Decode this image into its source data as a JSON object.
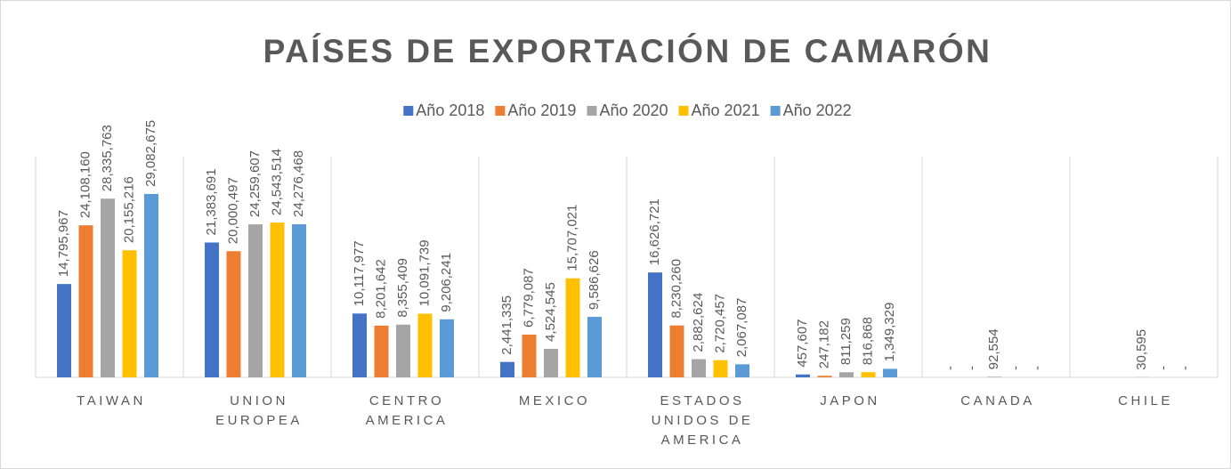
{
  "chart_data": {
    "type": "bar",
    "title": "PAÍSES DE EXPORTACIÓN DE CAMARÓN",
    "categories": [
      "TAIWAN",
      "UNION EUROPEA",
      "CENTRO AMERICA",
      "MEXICO",
      "ESTADOS UNIDOS DE AMERICA",
      "JAPON",
      "CANADA",
      "CHILE"
    ],
    "series": [
      {
        "name": "Año 2018",
        "color": "#4472c4",
        "values": [
          14795967,
          21383691,
          10117977,
          2441335,
          16626721,
          457607,
          0,
          null
        ],
        "value_labels": [
          "14,795,967",
          "21,383,691",
          "10,117,977",
          "2,441,335",
          "16,626,721",
          "457,607",
          "-",
          null
        ]
      },
      {
        "name": "Año 2019",
        "color": "#ed7d31",
        "values": [
          24108160,
          20000497,
          8201642,
          6779087,
          8230260,
          247182,
          0,
          null
        ],
        "value_labels": [
          "24,108,160",
          "20,000,497",
          "8,201,642",
          "6,779,087",
          "8,230,260",
          "247,182",
          "-",
          null
        ]
      },
      {
        "name": "Año 2020",
        "color": "#a5a5a5",
        "values": [
          28335763,
          24259607,
          8355409,
          4524545,
          2882624,
          811259,
          92554,
          30595
        ],
        "value_labels": [
          "28,335,763",
          "24,259,607",
          "8,355,409",
          "4,524,545",
          "2,882,624",
          "811,259",
          "92,554",
          "30,595"
        ]
      },
      {
        "name": "Año 2021",
        "color": "#ffc000",
        "values": [
          20155216,
          24543514,
          10091739,
          15707021,
          2720457,
          816868,
          0,
          0
        ],
        "value_labels": [
          "20,155,216",
          "24,543,514",
          "10,091,739",
          "15,707,021",
          "2,720,457",
          "816,868",
          "-",
          "-"
        ]
      },
      {
        "name": "Año 2022",
        "color": "#5b9bd5",
        "values": [
          29082675,
          24276468,
          9206241,
          9586626,
          2067087,
          1349329,
          0,
          0
        ],
        "value_labels": [
          "29,082,675",
          "24,276,468",
          "9,206,241",
          "9,586,626",
          "2,067,087",
          "1,349,329",
          "-",
          "-"
        ]
      }
    ],
    "ylim": [
      0,
      35000000
    ],
    "legend": "top"
  }
}
